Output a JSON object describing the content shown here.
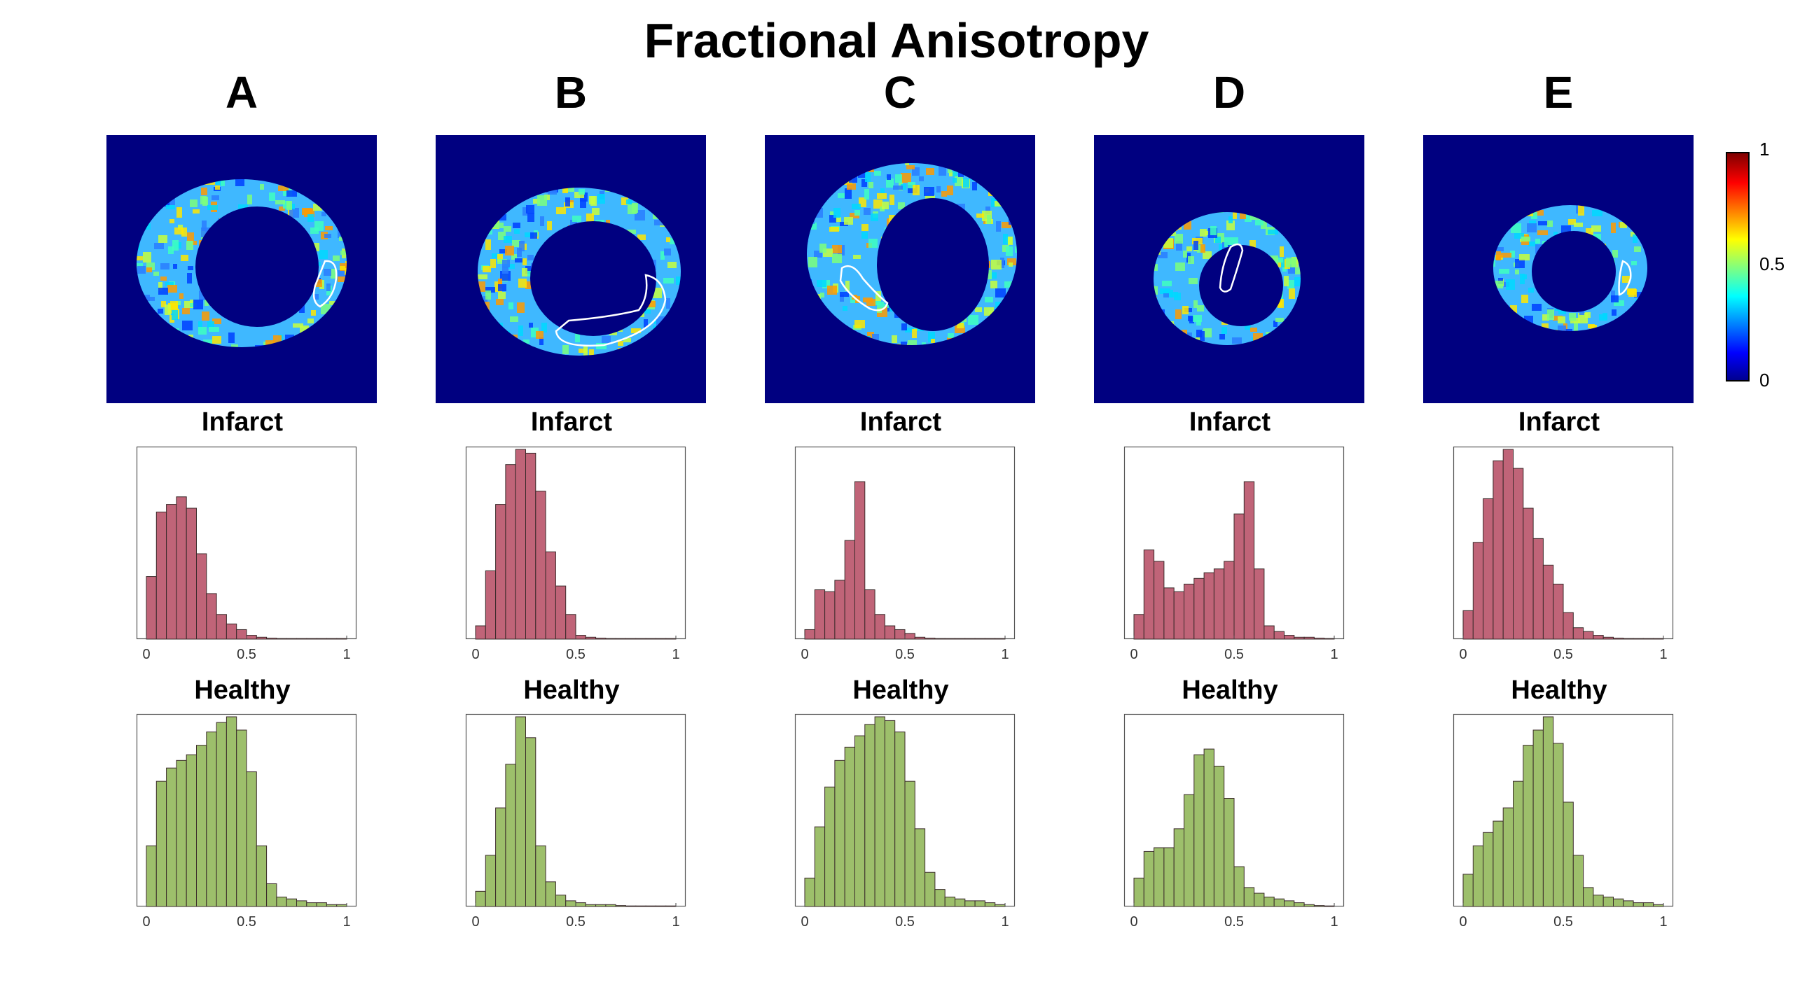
{
  "title": "Fractional Anisotropy",
  "colorbar": {
    "ticks": [
      "1",
      "0.5",
      "0"
    ],
    "colors": [
      "#00008f",
      "#0000ff",
      "#00ffff",
      "#ffff00",
      "#ff0000",
      "#800000"
    ]
  },
  "colors": {
    "infarct": "#c06478",
    "healthy": "#9dbf6b",
    "background": "#000080"
  },
  "chart_data": [
    {
      "type": "bar",
      "panel": "A",
      "title": "Infarct",
      "xlim": [
        0,
        1
      ],
      "xticks": [
        "0",
        "0.5",
        "1"
      ],
      "values": [
        0.33,
        0.67,
        0.71,
        0.75,
        0.69,
        0.45,
        0.24,
        0.13,
        0.08,
        0.05,
        0.02,
        0.01,
        0.005,
        0.003,
        0.002,
        0.001,
        0.001,
        0.001,
        0.001,
        0.001
      ]
    },
    {
      "type": "bar",
      "panel": "A",
      "title": "Healthy",
      "xlim": [
        0,
        1
      ],
      "xticks": [
        "0",
        "0.5",
        "1"
      ],
      "values": [
        0.32,
        0.66,
        0.73,
        0.77,
        0.8,
        0.85,
        0.92,
        0.97,
        1.0,
        0.93,
        0.71,
        0.32,
        0.12,
        0.05,
        0.04,
        0.03,
        0.02,
        0.02,
        0.01,
        0.01
      ]
    },
    {
      "type": "bar",
      "panel": "B",
      "title": "Infarct",
      "xlim": [
        0,
        1
      ],
      "xticks": [
        "0",
        "0.5",
        "1"
      ],
      "values": [
        0.07,
        0.36,
        0.71,
        0.92,
        1.0,
        0.98,
        0.78,
        0.46,
        0.28,
        0.13,
        0.02,
        0.01,
        0.005,
        0.003,
        0.002,
        0.002,
        0.001,
        0.001,
        0.001,
        0.001
      ]
    },
    {
      "type": "bar",
      "panel": "B",
      "title": "Healthy",
      "xlim": [
        0,
        1
      ],
      "xticks": [
        "0",
        "0.5",
        "1"
      ],
      "values": [
        0.08,
        0.27,
        0.52,
        0.75,
        1.0,
        0.89,
        0.32,
        0.13,
        0.06,
        0.03,
        0.02,
        0.01,
        0.01,
        0.01,
        0.005,
        0.003,
        0.002,
        0.002,
        0.001,
        0.001
      ]
    },
    {
      "type": "bar",
      "panel": "C",
      "title": "Infarct",
      "xlim": [
        0,
        1
      ],
      "xticks": [
        "0",
        "0.5",
        "1"
      ],
      "values": [
        0.05,
        0.26,
        0.25,
        0.31,
        0.52,
        0.83,
        0.26,
        0.13,
        0.07,
        0.05,
        0.03,
        0.01,
        0.005,
        0.003,
        0.002,
        0.002,
        0.001,
        0.001,
        0.001,
        0.001
      ]
    },
    {
      "type": "bar",
      "panel": "C",
      "title": "Healthy",
      "xlim": [
        0,
        1
      ],
      "xticks": [
        "0",
        "0.5",
        "1"
      ],
      "values": [
        0.15,
        0.42,
        0.63,
        0.77,
        0.84,
        0.9,
        0.96,
        1.0,
        0.98,
        0.92,
        0.66,
        0.41,
        0.18,
        0.09,
        0.05,
        0.04,
        0.03,
        0.03,
        0.02,
        0.01
      ]
    },
    {
      "type": "bar",
      "panel": "D",
      "title": "Infarct",
      "xlim": [
        0,
        1
      ],
      "xticks": [
        "0",
        "0.5",
        "1"
      ],
      "values": [
        0.13,
        0.47,
        0.41,
        0.27,
        0.25,
        0.29,
        0.32,
        0.35,
        0.37,
        0.41,
        0.66,
        0.83,
        0.37,
        0.07,
        0.04,
        0.02,
        0.01,
        0.01,
        0.005,
        0.003
      ]
    },
    {
      "type": "bar",
      "panel": "D",
      "title": "Healthy",
      "xlim": [
        0,
        1
      ],
      "xticks": [
        "0",
        "0.5",
        "1"
      ],
      "values": [
        0.15,
        0.29,
        0.31,
        0.31,
        0.41,
        0.59,
        0.8,
        0.83,
        0.74,
        0.57,
        0.21,
        0.1,
        0.07,
        0.05,
        0.04,
        0.03,
        0.02,
        0.01,
        0.005,
        0.003
      ]
    },
    {
      "type": "bar",
      "panel": "E",
      "title": "Infarct",
      "xlim": [
        0,
        1
      ],
      "xticks": [
        "0",
        "0.5",
        "1"
      ],
      "values": [
        0.15,
        0.51,
        0.74,
        0.94,
        1.0,
        0.9,
        0.69,
        0.53,
        0.39,
        0.29,
        0.14,
        0.06,
        0.04,
        0.02,
        0.01,
        0.005,
        0.003,
        0.002,
        0.001,
        0.001
      ]
    },
    {
      "type": "bar",
      "panel": "E",
      "title": "Healthy",
      "xlim": [
        0,
        1
      ],
      "xticks": [
        "0",
        "0.5",
        "1"
      ],
      "values": [
        0.17,
        0.32,
        0.39,
        0.45,
        0.52,
        0.66,
        0.85,
        0.93,
        1.0,
        0.86,
        0.55,
        0.27,
        0.1,
        0.06,
        0.05,
        0.04,
        0.03,
        0.02,
        0.02,
        0.01
      ]
    }
  ]
}
